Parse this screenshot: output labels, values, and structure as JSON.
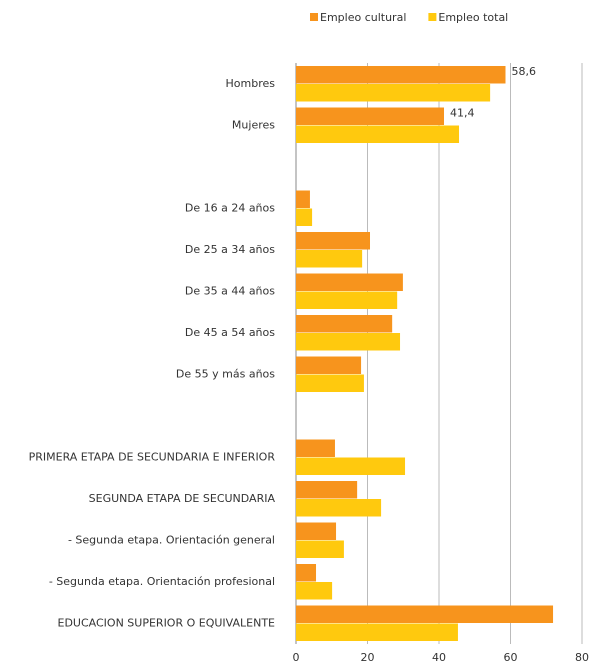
{
  "chart_data": {
    "type": "hbar",
    "categories": [
      "Hombres",
      "Mujeres",
      null,
      "De 16 a 24 años",
      "De 25 a 34 años",
      "De 35 a 44 años",
      "De 45 a 54 años",
      "De 55 y más años",
      null,
      "PRIMERA ETAPA DE SECUNDARIA E INFERIOR",
      "SEGUNDA ETAPA DE SECUNDARIA",
      "- Segunda etapa. Orientación general",
      "- Segunda etapa. Orientación profesional",
      "EDUCACION SUPERIOR O EQUIVALENTE"
    ],
    "series": [
      {
        "name": "Empleo cultural",
        "color": "#f7941d",
        "values": [
          58.6,
          41.4,
          null,
          3.9,
          20.7,
          29.9,
          26.9,
          18.2,
          null,
          10.9,
          17.1,
          11.2,
          5.6,
          71.9
        ],
        "value_labels": [
          "58,6",
          "41,4",
          null,
          null,
          null,
          null,
          null,
          null,
          null,
          null,
          null,
          null,
          null,
          null
        ]
      },
      {
        "name": "Empleo total",
        "color": "#ffc90e",
        "values": [
          54.3,
          45.6,
          null,
          4.5,
          18.5,
          28.3,
          29.1,
          19.0,
          null,
          30.5,
          23.8,
          13.4,
          10.1,
          45.3
        ]
      }
    ],
    "xlim": [
      0,
      80
    ],
    "xticks": [
      0,
      20,
      40,
      60,
      80
    ],
    "grid": true,
    "legend": "top"
  }
}
